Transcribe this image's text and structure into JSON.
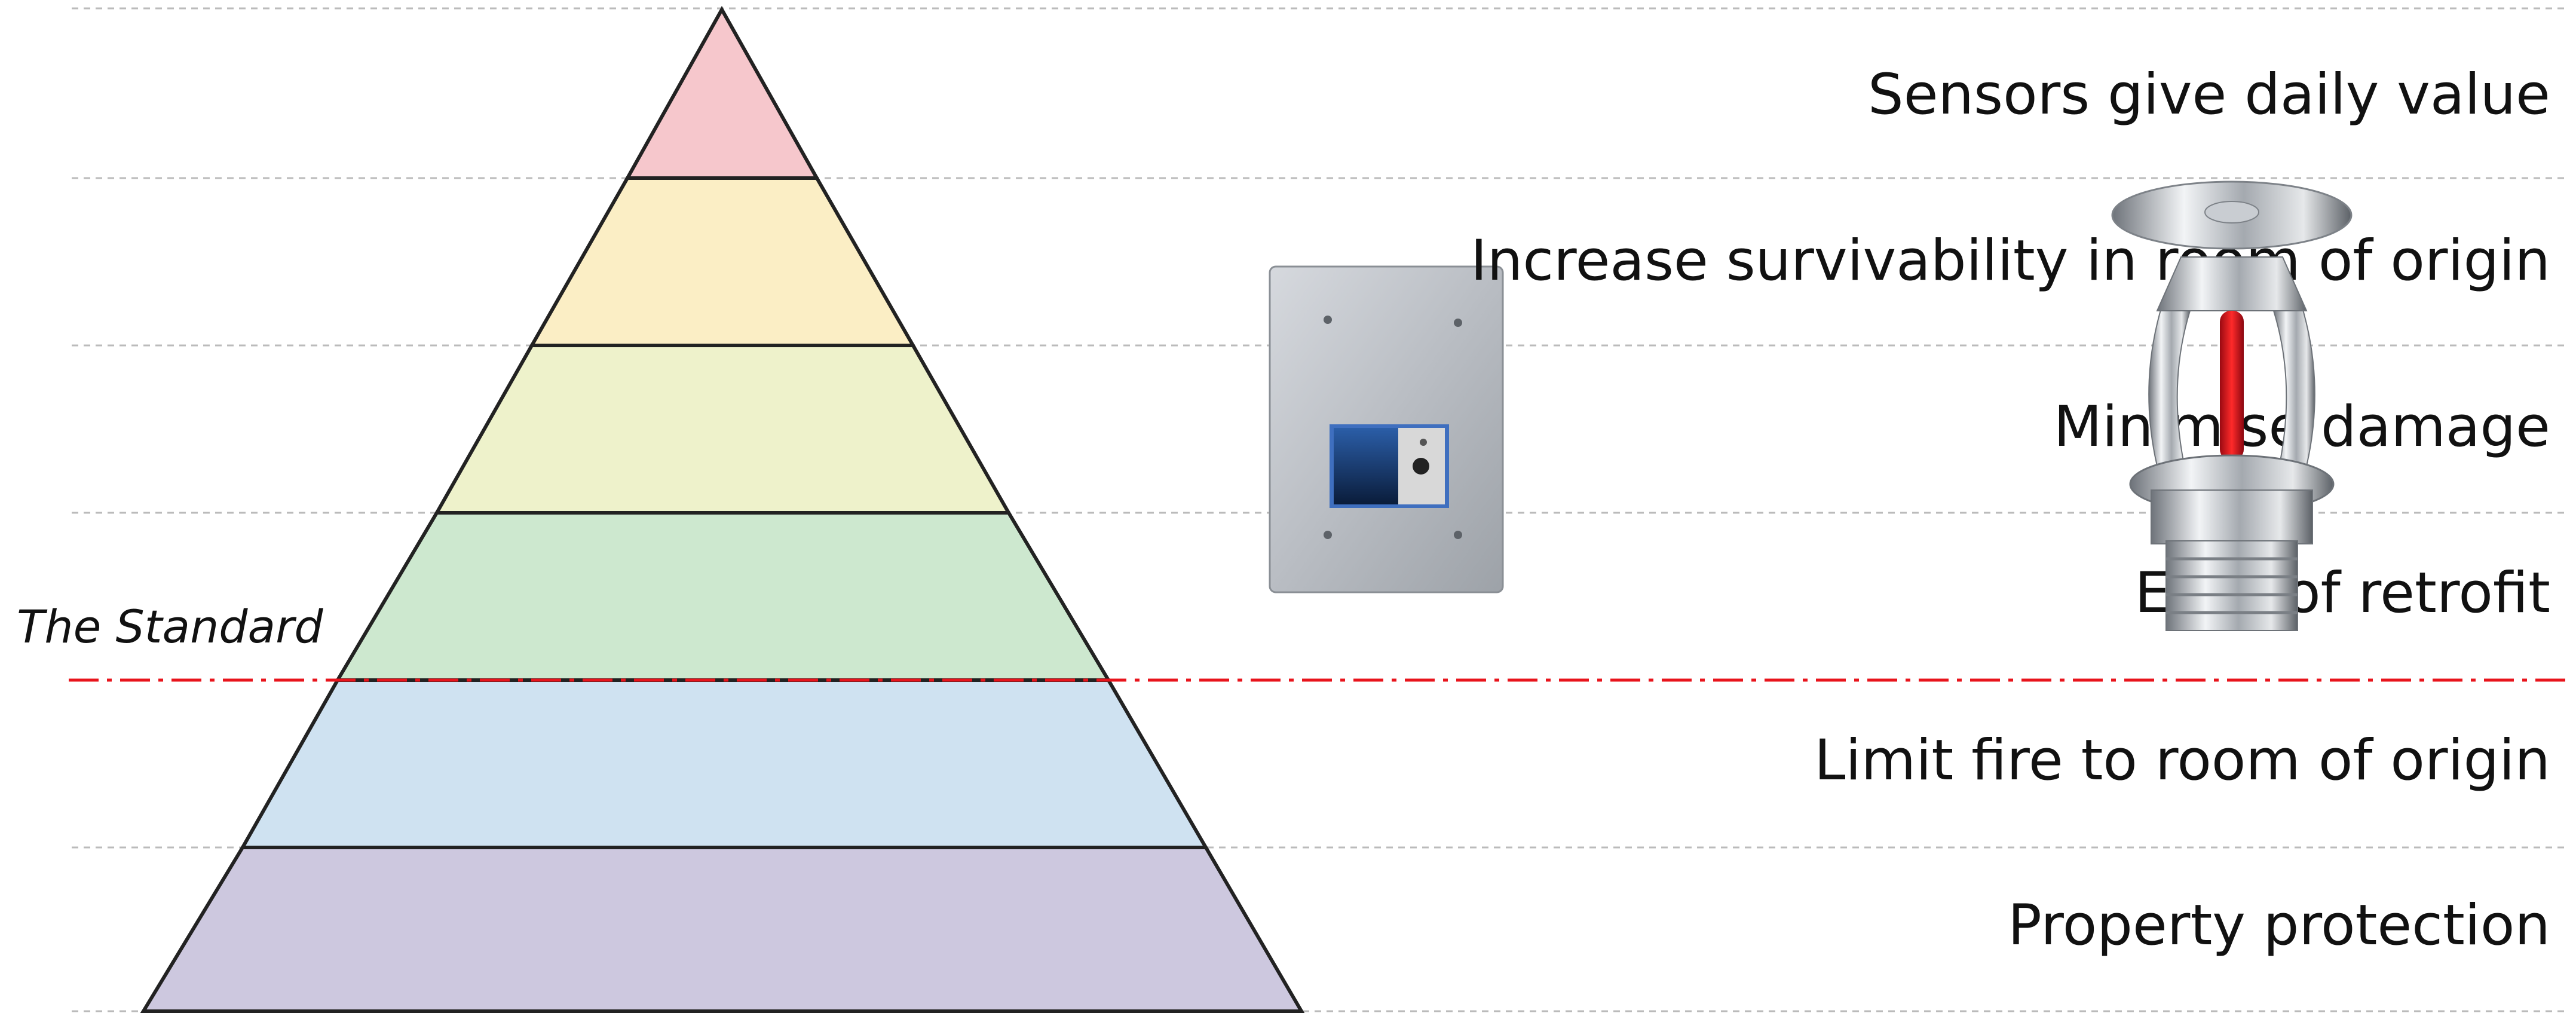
{
  "standard_label": "The Standard",
  "tiers": [
    {
      "label": "Sensors give daily value",
      "fill": "#f6c7cc"
    },
    {
      "label": "Increase survivability in room of origin",
      "fill": "#fbeec5"
    },
    {
      "label": "Minimise damage",
      "fill": "#eef2cb"
    },
    {
      "label": "Ease of retrofit",
      "fill": "#cde8cf"
    },
    {
      "label": "Limit fire to room of origin",
      "fill": "#cfe2f1"
    },
    {
      "label": "Property protection",
      "fill": "#cdc8df"
    }
  ],
  "colors": {
    "standard_line": "#e8141c",
    "outline": "#222222",
    "guide": "#bbbbbb"
  },
  "images": {
    "sensor_panel": "wall-mounted-sensor-panel",
    "sprinkler": "fire-sprinkler-head"
  }
}
